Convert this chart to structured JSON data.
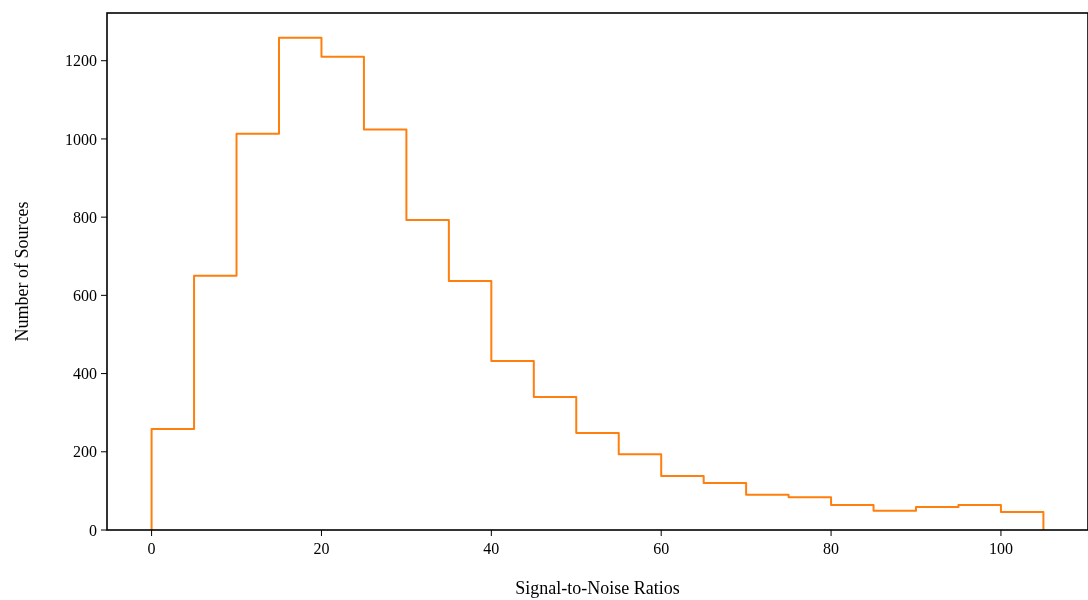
{
  "chart_data": {
    "type": "histogram",
    "xlabel": "Signal-to-Noise Ratios",
    "ylabel": "Number of Sources",
    "bins": [
      0,
      5,
      10,
      15,
      20,
      25,
      30,
      35,
      40,
      45,
      50,
      55,
      60,
      65,
      70,
      75,
      80,
      85,
      90,
      95,
      100,
      105
    ],
    "values": [
      258,
      650,
      1013,
      1259,
      1210,
      1024,
      793,
      637,
      432,
      340,
      248,
      194,
      138,
      120,
      90,
      84,
      64,
      49,
      59,
      64,
      46
    ],
    "color": "#ff7f0e",
    "xlim": [
      -5.25,
      110.25
    ],
    "xticks": [
      0,
      20,
      40,
      60,
      80,
      100
    ],
    "ylim": [
      0,
      1322
    ],
    "yticks": [
      0,
      200,
      400,
      600,
      800,
      1000,
      1200
    ],
    "grid": false
  }
}
